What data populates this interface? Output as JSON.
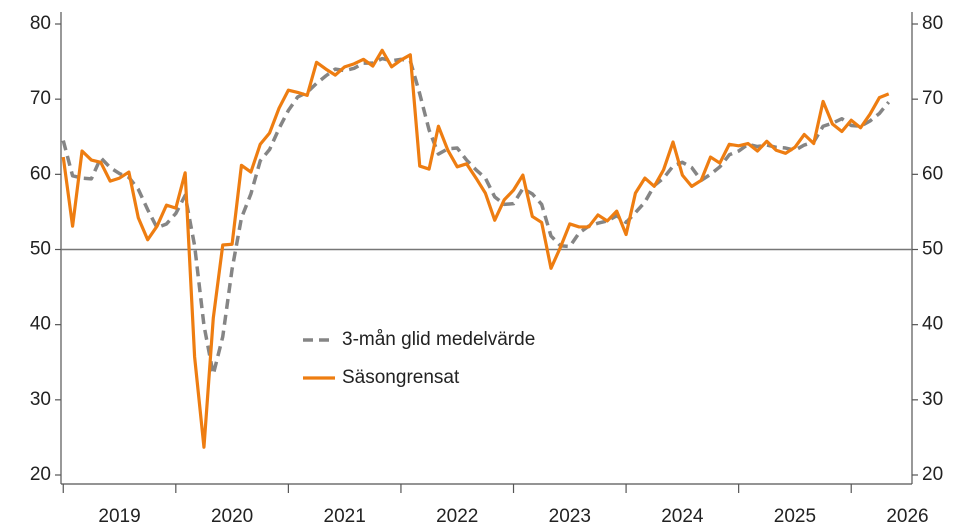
{
  "chart_data": {
    "type": "line",
    "x": [
      2019.0,
      2019.083,
      2019.167,
      2019.25,
      2019.333,
      2019.417,
      2019.5,
      2019.583,
      2019.667,
      2019.75,
      2019.833,
      2019.917,
      2020.0,
      2020.083,
      2020.167,
      2020.25,
      2020.333,
      2020.417,
      2020.5,
      2020.583,
      2020.667,
      2020.75,
      2020.833,
      2020.917,
      2021.0,
      2021.083,
      2021.167,
      2021.25,
      2021.333,
      2021.417,
      2021.5,
      2021.583,
      2021.667,
      2021.75,
      2021.833,
      2021.917,
      2022.0,
      2022.083,
      2022.167,
      2022.25,
      2022.333,
      2022.417,
      2022.5,
      2022.583,
      2022.667,
      2022.75,
      2022.833,
      2022.917,
      2023.0,
      2023.083,
      2023.167,
      2023.25,
      2023.333,
      2023.417,
      2023.5,
      2023.583,
      2023.667,
      2023.75,
      2023.833,
      2023.917,
      2024.0,
      2024.083,
      2024.167,
      2024.25,
      2024.333,
      2024.417,
      2024.5,
      2024.583,
      2024.667,
      2024.75,
      2024.833,
      2024.917,
      2025.0,
      2025.083,
      2025.167,
      2025.25,
      2025.333,
      2025.417,
      2025.5,
      2025.583,
      2025.667,
      2025.75,
      2025.833,
      2025.917,
      2026.0,
      2026.083,
      2026.167,
      2026.25,
      2026.333
    ],
    "series": [
      {
        "name": "3-mån glid medelvärde",
        "color": "#858585",
        "dash": true,
        "values": [
          64.5,
          59.8,
          59.5,
          59.4,
          62.2,
          60.9,
          60.1,
          59.6,
          58.0,
          55.3,
          52.9,
          53.4,
          54.8,
          57.2,
          50.5,
          39.9,
          33.4,
          38.4,
          47.4,
          54.2,
          57.4,
          61.8,
          63.3,
          66.1,
          68.5,
          70.3,
          70.9,
          72.1,
          73.1,
          74.0,
          73.8,
          74.1,
          74.8,
          74.8,
          75.4,
          75.1,
          75.3,
          75.1,
          70.7,
          65.9,
          62.7,
          63.4,
          63.5,
          61.9,
          60.6,
          59.5,
          57.0,
          56.0,
          56.1,
          58.1,
          57.4,
          56.0,
          51.8,
          50.5,
          50.4,
          52.2,
          53.1,
          53.5,
          53.8,
          54.5,
          53.6,
          54.9,
          56.3,
          58.5,
          59.5,
          61.1,
          61.6,
          60.9,
          59.2,
          60.0,
          61.0,
          62.6,
          63.1,
          64.0,
          63.7,
          63.9,
          63.6,
          63.5,
          63.2,
          63.9,
          64.3,
          66.4,
          66.8,
          67.4,
          66.5,
          66.4,
          67.1,
          68.1,
          69.6
        ]
      },
      {
        "name": "Säsongrensat",
        "color": "#ee7d11",
        "dash": false,
        "values": [
          62.3,
          53.1,
          63.1,
          61.9,
          61.6,
          59.1,
          59.5,
          60.3,
          54.2,
          51.3,
          53.1,
          55.9,
          55.5,
          60.2,
          35.7,
          23.7,
          40.9,
          50.6,
          50.7,
          61.2,
          60.3,
          64.0,
          65.5,
          68.8,
          71.2,
          70.9,
          70.5,
          74.9,
          74.0,
          73.2,
          74.3,
          74.7,
          75.3,
          74.4,
          76.5,
          74.3,
          75.2,
          75.9,
          61.1,
          60.7,
          66.4,
          63.2,
          61.0,
          61.4,
          59.5,
          57.5,
          53.9,
          56.6,
          57.9,
          59.9,
          54.4,
          53.6,
          47.5,
          50.3,
          53.4,
          53.0,
          53.0,
          54.6,
          53.8,
          55.1,
          52.0,
          57.5,
          59.5,
          58.4,
          60.6,
          64.3,
          59.9,
          58.4,
          59.2,
          62.3,
          61.5,
          64.0,
          63.8,
          64.1,
          63.1,
          64.4,
          63.2,
          62.8,
          63.6,
          65.3,
          64.1,
          69.7,
          66.7,
          65.7,
          67.2,
          66.2,
          68.0,
          70.2,
          70.7
        ]
      }
    ],
    "xlim": [
      2018.98,
      2026.54
    ],
    "xticks": [
      2019,
      2020,
      2021,
      2022,
      2023,
      2024,
      2025,
      2026
    ],
    "ylim": [
      20,
      80
    ],
    "yticks": [
      20,
      30,
      40,
      50,
      60,
      70,
      80
    ],
    "y2lim": [
      20,
      80
    ],
    "y2ticks": [
      20,
      30,
      40,
      50,
      60,
      70,
      80
    ],
    "reference_line": 50
  }
}
